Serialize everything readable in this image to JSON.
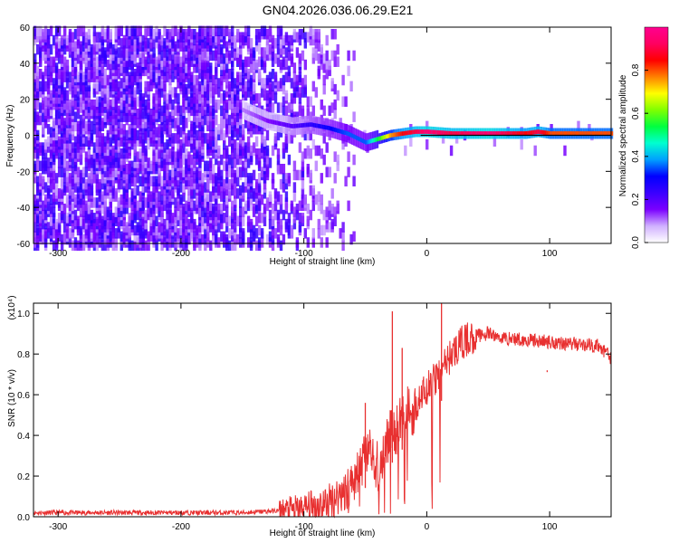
{
  "title": "GN04.2026.036.06.29.E21",
  "chart_data": [
    {
      "type": "heatmap",
      "xlabel": "Height of straight line (km)",
      "ylabel": "Frequency (Hz)",
      "xlim": [
        -320,
        150
      ],
      "ylim": [
        -60,
        60
      ],
      "xticks": [
        -300,
        -200,
        -100,
        0,
        100
      ],
      "xtick_labels": [
        "-300",
        "-200",
        "-100",
        "0",
        "100"
      ],
      "yticks": [
        -60,
        -40,
        -20,
        0,
        20,
        40,
        60
      ],
      "ytick_labels": [
        "-60",
        "-40",
        "-20",
        "0",
        "20",
        "40",
        "60"
      ],
      "colorbar": {
        "label": "Normalized spectral amplitude",
        "range": [
          0,
          1
        ],
        "ticks": [
          0.0,
          0.2,
          0.4,
          0.6,
          0.8
        ],
        "tick_labels": [
          "0.0",
          "0.2",
          "0.4",
          "0.6",
          "0.8"
        ],
        "colormap": [
          "#ffffff",
          "#d0b0ff",
          "#7a00ff",
          "#3a00ff",
          "#0000ff",
          "#00a0ff",
          "#00ffd0",
          "#00ff40",
          "#80ff00",
          "#ffff00",
          "#ff8000",
          "#ff0000",
          "#ff0060",
          "#ff0090"
        ]
      },
      "ridge": {
        "x": [
          -150,
          -130,
          -110,
          -95,
          -80,
          -65,
          -50,
          -40,
          -30,
          -20,
          -10,
          0,
          20,
          50,
          80,
          90,
          100,
          150
        ],
        "freq": [
          14,
          8,
          5,
          6,
          4,
          1,
          -4,
          -2,
          0,
          1,
          2,
          2,
          1,
          1,
          1,
          2,
          1,
          1
        ],
        "amplitude": [
          0.1,
          0.15,
          0.2,
          0.25,
          0.3,
          0.35,
          0.35,
          0.55,
          0.75,
          0.85,
          0.9,
          0.95,
          0.9,
          0.95,
          0.85,
          0.9,
          0.8,
          0.8
        ]
      }
    },
    {
      "type": "line",
      "xlabel": "Height of straight line (km)",
      "ylabel": "SNR (10 * v/v)",
      "y_multiplier": "(x10⁴)",
      "xlim": [
        -320,
        150
      ],
      "ylim": [
        0,
        1.05
      ],
      "xticks": [
        -300,
        -200,
        -100,
        0,
        100
      ],
      "xtick_labels": [
        "-300",
        "-200",
        "-100",
        "0",
        "100"
      ],
      "yticks": [
        0.0,
        0.2,
        0.4,
        0.6,
        0.8,
        1.0
      ],
      "ytick_labels": [
        "0.0",
        "0.2",
        "0.4",
        "0.6",
        "0.8",
        "1.0"
      ],
      "color": "#e83030",
      "series": [
        {
          "name": "SNR",
          "x": [
            -320,
            -300,
            -250,
            -200,
            -150,
            -120,
            -100,
            -80,
            -65,
            -55,
            -48,
            -40,
            -30,
            -20,
            -10,
            0,
            10,
            20,
            30,
            40,
            50,
            60,
            80,
            100,
            120,
            140,
            150
          ],
          "y": [
            0.02,
            0.02,
            0.02,
            0.02,
            0.02,
            0.03,
            0.04,
            0.07,
            0.14,
            0.22,
            0.32,
            0.25,
            0.4,
            0.48,
            0.55,
            0.62,
            0.7,
            0.8,
            0.86,
            0.89,
            0.9,
            0.88,
            0.87,
            0.86,
            0.85,
            0.84,
            0.78
          ]
        }
      ],
      "spikes": [
        {
          "x": -50,
          "y": 0.56
        },
        {
          "x": -28,
          "y": 1.01
        },
        {
          "x": -20,
          "y": 0.83
        },
        {
          "x": 12,
          "y": 1.05
        },
        {
          "x": 98,
          "y": 0.72
        }
      ]
    }
  ]
}
